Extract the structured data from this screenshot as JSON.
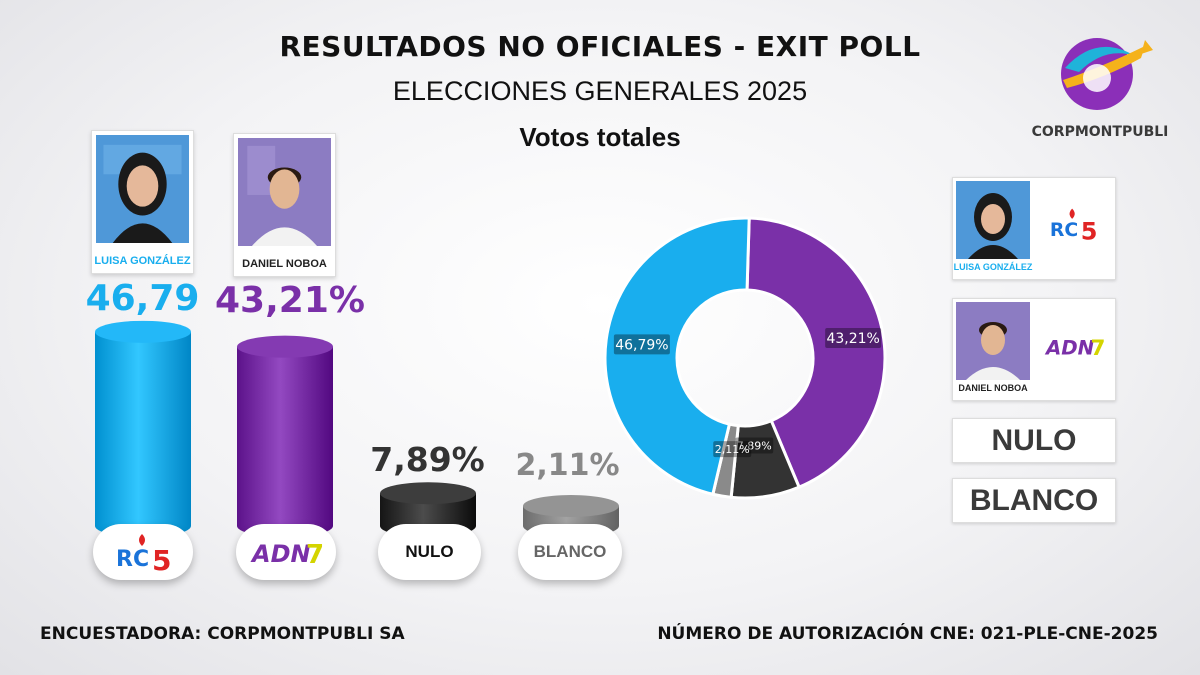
{
  "header": {
    "title": "RESULTADOS NO OFICIALES - EXIT POLL",
    "subtitle": "ELECCIONES GENERALES 2025",
    "section": "Votos totales",
    "logo_text": "CORPMONTPUBLI"
  },
  "candidates": [
    {
      "name": "LUISA GONZÁLEZ",
      "value_label": "46,79",
      "party_logo": "RC5",
      "color": "#19aeee"
    },
    {
      "name": "DANIEL NOBOA",
      "value_label": "43,21%",
      "party_logo": "ADN 7",
      "color": "#7a30a8"
    }
  ],
  "others": [
    {
      "label": "NULO",
      "value_label": "7,89%",
      "color": "#333333"
    },
    {
      "label": "BLANCO",
      "value_label": "2,11%",
      "color": "#8a8a8a"
    }
  ],
  "legend": {
    "luisa_name": "LUISA GONZÁLEZ",
    "daniel_name": "DANIEL NOBOA",
    "nulo": "NULO",
    "blanco": "BLANCO"
  },
  "footer": {
    "left": "ENCUESTADORA: CORPMONTPUBLI SA",
    "right": "NÚMERO DE AUTORIZACIÓN CNE: 021-PLE-CNE-2025"
  },
  "chart_data": [
    {
      "type": "bar",
      "categories": [
        "LUISA GONZÁLEZ",
        "DANIEL NOBOA",
        "NULO",
        "BLANCO"
      ],
      "values": [
        46.79,
        43.21,
        7.89,
        2.11
      ],
      "colors": [
        "#19aeee",
        "#7a30a8",
        "#333333",
        "#8a8a8a"
      ]
    },
    {
      "type": "pie",
      "style": "donut",
      "categories": [
        "LUISA GONZÁLEZ",
        "DANIEL NOBOA",
        "NULO",
        "BLANCO"
      ],
      "values": [
        46.79,
        43.21,
        7.89,
        2.11
      ],
      "labels": [
        "46,79%",
        "43,21%",
        "7,89%",
        "2,11%"
      ],
      "colors": [
        "#19aeee",
        "#7a30a8",
        "#333333",
        "#8a8a8a"
      ]
    }
  ]
}
